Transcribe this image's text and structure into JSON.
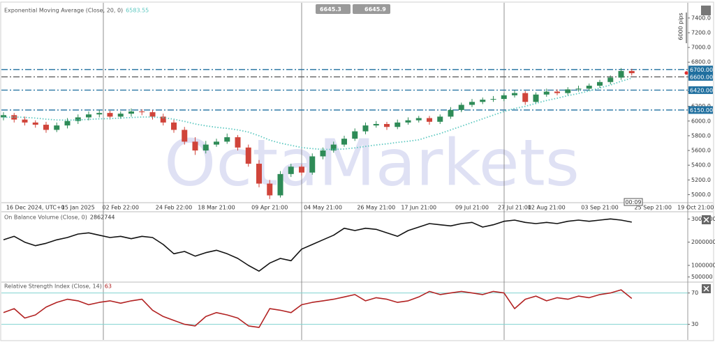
{
  "toolbar": {
    "bid": "6645.3",
    "ask": "6645.9",
    "pips": "6000 pips",
    "timer": "00:09"
  },
  "watermark": "OctaMarkets",
  "chart_data": [
    {
      "type": "candlestick",
      "title": "Exponential Moving Average (Close, 20, 0)",
      "indicator_value": 6583.55,
      "categories": [
        null,
        null,
        null,
        "16 Dec 2024, UTC+0",
        null,
        null,
        null,
        "15 Jan 2025",
        null,
        null,
        null,
        "02 Feb 22:00",
        null,
        null,
        null,
        null,
        "24 Feb 22:00",
        null,
        null,
        null,
        "18 Mar 21:00",
        null,
        null,
        null,
        null,
        "09 Apr 21:00",
        null,
        null,
        null,
        null,
        "04 May 21:00",
        null,
        null,
        null,
        null,
        "26 May 21:00",
        null,
        null,
        null,
        "17 Jun 21:00",
        null,
        null,
        null,
        null,
        "09 Jul 21:00",
        null,
        null,
        null,
        "27 Jul 21:00",
        null,
        null,
        "12 Aug 21:00",
        null,
        null,
        null,
        null,
        "03 Sep 21:00",
        null,
        null,
        null,
        null,
        "25 Sep 21:00",
        null,
        null,
        null,
        "19 Oct 21:00"
      ],
      "open": [
        6050,
        6080,
        6020,
        5980,
        5950,
        5880,
        5940,
        6000,
        6050,
        6090,
        6110,
        6060,
        6100,
        6130,
        6120,
        6060,
        5980,
        5880,
        5720,
        5600,
        5680,
        5720,
        5780,
        5640,
        5420,
        5150,
        4990,
        5280,
        5380,
        5300,
        5520,
        5600,
        5680,
        5760,
        5860,
        5940,
        5960,
        5920,
        5980,
        6010,
        6040,
        5990,
        6060,
        6150,
        6220,
        6260,
        6290,
        6300,
        6350,
        6380,
        6260,
        6360,
        6400,
        6380,
        6430,
        6440,
        6480,
        6530,
        6590,
        6680,
        null,
        null,
        null,
        null,
        null,
        null
      ],
      "high": [
        6120,
        6110,
        6060,
        6010,
        5990,
        5980,
        6040,
        6090,
        6130,
        6150,
        6140,
        6130,
        6170,
        6160,
        6150,
        6100,
        6020,
        5920,
        5780,
        5730,
        5760,
        5830,
        5810,
        5680,
        5470,
        5200,
        5320,
        5420,
        5410,
        5560,
        5640,
        5720,
        5800,
        5900,
        5980,
        6000,
        5990,
        6020,
        6050,
        6070,
        6070,
        6090,
        6190,
        6250,
        6300,
        6320,
        6340,
        6380,
        6420,
        6410,
        6390,
        6440,
        6430,
        6460,
        6480,
        6510,
        6560,
        6620,
        6720,
        6710,
        null,
        null,
        null,
        null,
        null,
        null
      ],
      "low": [
        6010,
        5980,
        5940,
        5910,
        5840,
        5850,
        5900,
        5960,
        6010,
        6050,
        6020,
        6030,
        6060,
        6080,
        6020,
        5940,
        5840,
        5680,
        5540,
        5560,
        5650,
        5690,
        5600,
        5380,
        5100,
        4940,
        4960,
        5240,
        5260,
        5270,
        5480,
        5570,
        5650,
        5730,
        5820,
        5910,
        5880,
        5890,
        5950,
        5980,
        5950,
        5960,
        6030,
        6120,
        6190,
        6230,
        6260,
        6270,
        6320,
        6220,
        6230,
        6330,
        6350,
        6350,
        6400,
        6410,
        6450,
        6500,
        6560,
        6620,
        null,
        null,
        null,
        null,
        null,
        null
      ],
      "close": [
        6080,
        6020,
        5980,
        5950,
        5880,
        5940,
        6000,
        6050,
        6090,
        6110,
        6060,
        6100,
        6130,
        6120,
        6060,
        5980,
        5880,
        5720,
        5600,
        5680,
        5720,
        5780,
        5640,
        5420,
        5150,
        4990,
        5280,
        5380,
        5300,
        5520,
        5600,
        5680,
        5760,
        5860,
        5940,
        5960,
        5920,
        5980,
        6010,
        6040,
        5990,
        6060,
        6150,
        6220,
        6260,
        6290,
        6300,
        6350,
        6380,
        6260,
        6360,
        6400,
        6380,
        6430,
        6440,
        6480,
        6530,
        6590,
        6680,
        6650,
        null,
        null,
        null,
        null,
        null,
        null
      ],
      "ema": [
        6050,
        6055,
        6050,
        6040,
        6025,
        6015,
        6012,
        6015,
        6022,
        6030,
        6033,
        6040,
        6048,
        6055,
        6055,
        6045,
        6025,
        5995,
        5960,
        5935,
        5915,
        5900,
        5880,
        5850,
        5800,
        5740,
        5700,
        5670,
        5640,
        5625,
        5615,
        5615,
        5620,
        5635,
        5655,
        5675,
        5690,
        5710,
        5725,
        5745,
        5790,
        5830,
        5880,
        5930,
        5980,
        6030,
        6080,
        6130,
        6170,
        6200,
        6240,
        6280,
        6310,
        6345,
        6375,
        6410,
        6450,
        6490,
        6540,
        6583.55,
        null,
        null,
        null,
        null,
        null,
        null
      ],
      "up_color": "#2e8b57",
      "down_color": "#d0443a",
      "ema_color": "#5cc8c0",
      "ylim": [
        4900,
        7550
      ],
      "yticks": [
        {
          "value": 5000,
          "label": "5000.0"
        },
        {
          "value": 5200,
          "label": "5200.0"
        },
        {
          "value": 5400,
          "label": "5400.0"
        },
        {
          "value": 5600,
          "label": "5600.0"
        },
        {
          "value": 5800,
          "label": "5800.0"
        },
        {
          "value": 6000,
          "label": "6000.0"
        },
        {
          "value": 6200,
          "label": "6200.0"
        },
        {
          "value": 6400,
          "label": "6400.0"
        },
        {
          "value": 6600,
          "label": "6600.0"
        },
        {
          "value": 6800,
          "label": "6800.0"
        },
        {
          "value": 7000,
          "label": "7000.0"
        },
        {
          "value": 7200,
          "label": "7200.0"
        },
        {
          "value": 7400,
          "label": "7400.0"
        }
      ],
      "price_levels": [
        {
          "value": 6700,
          "label": "6700.00"
        },
        {
          "value": 6600,
          "label": "6600.00"
        },
        {
          "value": 6420,
          "label": "6420.00"
        },
        {
          "value": 6150,
          "label": "6150.00"
        }
      ],
      "level_colors": [
        "#1f6f9f",
        "#555555",
        "#1f6f9f",
        "#1f6f9f"
      ],
      "label_color": "#1f6f9f"
    },
    {
      "type": "line",
      "title": "On Balance Volume (Close, 0)",
      "indicator_value": 2862744,
      "color": "#111111",
      "values": [
        2100000,
        2250000,
        2000000,
        1850000,
        1950000,
        2100000,
        2200000,
        2350000,
        2400000,
        2300000,
        2200000,
        2250000,
        2150000,
        2250000,
        2200000,
        1900000,
        1500000,
        1600000,
        1400000,
        1550000,
        1650000,
        1500000,
        1300000,
        1000000,
        750000,
        1100000,
        1300000,
        1200000,
        1700000,
        1900000,
        2100000,
        2300000,
        2600000,
        2500000,
        2600000,
        2550000,
        2400000,
        2250000,
        2500000,
        2650000,
        2800000,
        2750000,
        2700000,
        2800000,
        2850000,
        2650000,
        2750000,
        2900000,
        2950000,
        2850000,
        2800000,
        2850000,
        2800000,
        2900000,
        2950000,
        2900000,
        2950000,
        3000000,
        2950000,
        2862744,
        null,
        null,
        null,
        null,
        null,
        null
      ],
      "ylim": [
        340000,
        3220000
      ],
      "yticks": [
        500000,
        1000000,
        2000000,
        3000000
      ]
    },
    {
      "type": "line",
      "title": "Relative Strength Index (Close, 14)",
      "indicator_value": 63,
      "color": "#b22222",
      "values": [
        45,
        50,
        38,
        42,
        52,
        58,
        62,
        60,
        55,
        58,
        60,
        57,
        60,
        62,
        48,
        40,
        35,
        30,
        28,
        40,
        45,
        42,
        38,
        28,
        26,
        50,
        48,
        45,
        55,
        58,
        60,
        62,
        65,
        68,
        60,
        64,
        62,
        58,
        60,
        65,
        72,
        68,
        70,
        72,
        70,
        68,
        72,
        70,
        50,
        62,
        66,
        60,
        64,
        62,
        66,
        64,
        68,
        70,
        74,
        63,
        null,
        null,
        null,
        null,
        null,
        null
      ],
      "ylim": [
        11,
        83
      ],
      "yticks": [
        30,
        70
      ],
      "level_color": "#7fd3d0"
    }
  ]
}
